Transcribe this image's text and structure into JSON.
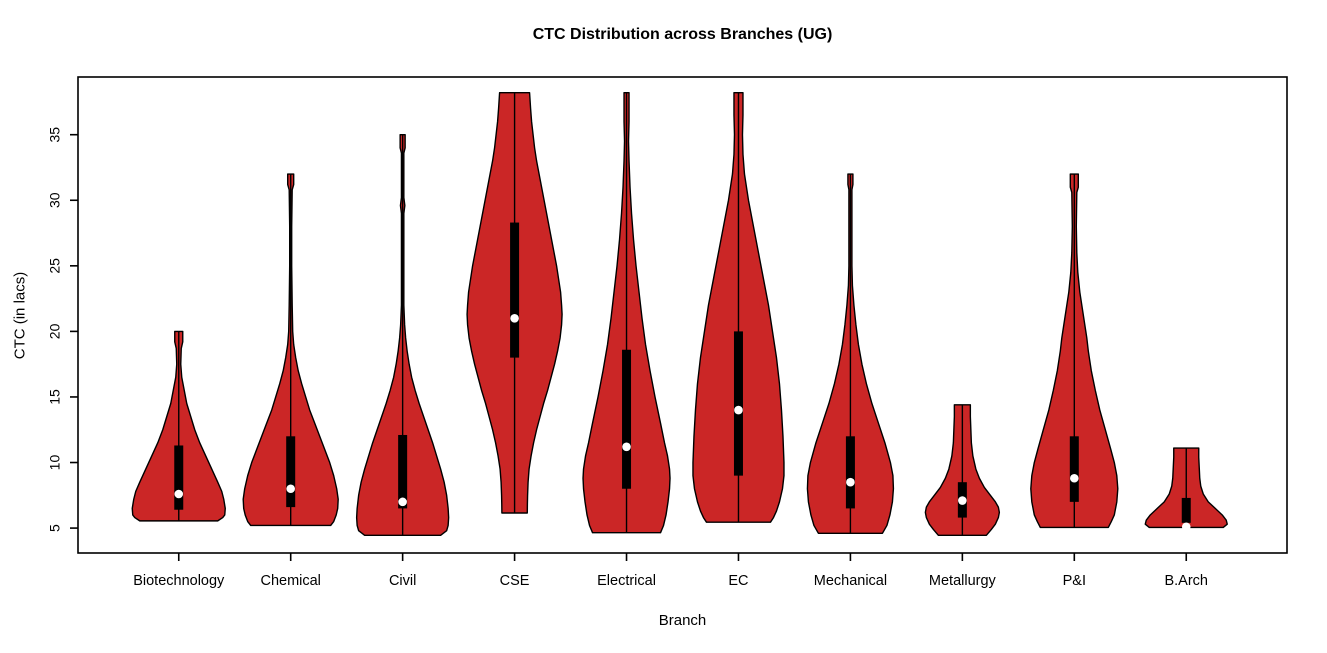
{
  "chart_data": {
    "type": "violin",
    "title": "CTC Distribution across Branches (UG)",
    "xlabel": "Branch",
    "ylabel": "CTC (in lacs)",
    "y_ticks": [
      5,
      10,
      15,
      20,
      25,
      30,
      35
    ],
    "ylim": [
      3.1,
      39.4
    ],
    "grid": false,
    "legend": "none",
    "categories": [
      "Biotechnology",
      "Chemical",
      "Civil",
      "CSE",
      "Electrical",
      "EC",
      "Mechanical",
      "Metallurgy",
      "P&I",
      "B.Arch"
    ],
    "colors": {
      "violin_fill": "#CB2626",
      "violin_border": "#000000",
      "box": "#000000",
      "whisker": "#000000",
      "median_dot": "#FFFFFF",
      "axis": "#000000"
    },
    "series": [
      {
        "name": "Biotechnology",
        "stats": {
          "min": 5.55,
          "q1": 6.4,
          "median": 7.6,
          "q3": 11.3,
          "max": 20
        },
        "profile": [
          [
            20.0,
            4
          ],
          [
            19.2,
            4
          ],
          [
            18.7,
            2.5
          ],
          [
            17.5,
            2
          ],
          [
            16.5,
            3
          ],
          [
            15.5,
            5.5
          ],
          [
            14.5,
            8
          ],
          [
            13.5,
            12
          ],
          [
            12.5,
            16
          ],
          [
            11.5,
            21
          ],
          [
            10.5,
            27
          ],
          [
            9.5,
            33
          ],
          [
            8.5,
            39
          ],
          [
            7.8,
            43
          ],
          [
            7.2,
            45
          ],
          [
            6.5,
            46.5
          ],
          [
            6.0,
            46
          ],
          [
            5.8,
            44
          ],
          [
            5.55,
            39
          ]
        ]
      },
      {
        "name": "Chemical",
        "stats": {
          "min": 5.2,
          "q1": 6.6,
          "median": 8.0,
          "q3": 12.0,
          "max": 32
        },
        "profile": [
          [
            32.0,
            3
          ],
          [
            31.2,
            3
          ],
          [
            30.8,
            1.5
          ],
          [
            28.0,
            1
          ],
          [
            25.0,
            1
          ],
          [
            22.0,
            1.5
          ],
          [
            20.0,
            2
          ],
          [
            19.0,
            3
          ],
          [
            18.0,
            5
          ],
          [
            17.0,
            7.5
          ],
          [
            16.0,
            11
          ],
          [
            15.0,
            15
          ],
          [
            14.0,
            19
          ],
          [
            13.0,
            24
          ],
          [
            12.0,
            29
          ],
          [
            11.0,
            34
          ],
          [
            10.0,
            39
          ],
          [
            9.0,
            43
          ],
          [
            8.0,
            46
          ],
          [
            7.2,
            47.5
          ],
          [
            6.5,
            47
          ],
          [
            6.0,
            45.5
          ],
          [
            5.5,
            43
          ],
          [
            5.2,
            40
          ]
        ]
      },
      {
        "name": "Civil",
        "stats": {
          "min": 4.45,
          "q1": 6.5,
          "median": 7.0,
          "q3": 12.1,
          "max": 35
        },
        "profile": [
          [
            35.0,
            2.5
          ],
          [
            34.0,
            2.5
          ],
          [
            33.6,
            1.2
          ],
          [
            30.2,
            1.2
          ],
          [
            29.6,
            2.2
          ],
          [
            29.0,
            1.2
          ],
          [
            22.0,
            1.2
          ],
          [
            20.5,
            2
          ],
          [
            19.5,
            3
          ],
          [
            18.5,
            4.5
          ],
          [
            17.5,
            6.5
          ],
          [
            16.5,
            9
          ],
          [
            15.5,
            12.5
          ],
          [
            14.5,
            16.5
          ],
          [
            13.5,
            21
          ],
          [
            12.5,
            25.5
          ],
          [
            11.5,
            30
          ],
          [
            10.5,
            34
          ],
          [
            9.5,
            38
          ],
          [
            8.5,
            41.5
          ],
          [
            7.5,
            44
          ],
          [
            6.5,
            45.5
          ],
          [
            5.8,
            46
          ],
          [
            5.2,
            45.5
          ],
          [
            4.8,
            44
          ],
          [
            4.45,
            38
          ]
        ]
      },
      {
        "name": "CSE",
        "stats": {
          "min": 6.15,
          "q1": 18.0,
          "median": 21.0,
          "q3": 28.3,
          "max": 38.2
        },
        "profile": [
          [
            38.2,
            15
          ],
          [
            37,
            16
          ],
          [
            36,
            17
          ],
          [
            35,
            18.5
          ],
          [
            34,
            20
          ],
          [
            33,
            22
          ],
          [
            32,
            24.5
          ],
          [
            31,
            27
          ],
          [
            30,
            29.5
          ],
          [
            29,
            32
          ],
          [
            28,
            34.5
          ],
          [
            27,
            37
          ],
          [
            26,
            39.5
          ],
          [
            25,
            42
          ],
          [
            24,
            44
          ],
          [
            23,
            46
          ],
          [
            22,
            47
          ],
          [
            21.3,
            47.5
          ],
          [
            20.5,
            47
          ],
          [
            19.5,
            45.5
          ],
          [
            18.5,
            43
          ],
          [
            17.5,
            40
          ],
          [
            16.5,
            36.5
          ],
          [
            15.5,
            33
          ],
          [
            14.5,
            29
          ],
          [
            13.5,
            25.5
          ],
          [
            12.5,
            22
          ],
          [
            11.5,
            19
          ],
          [
            10.5,
            16.5
          ],
          [
            9.5,
            14.5
          ],
          [
            8.5,
            13.5
          ],
          [
            7.5,
            13
          ],
          [
            6.8,
            12.8
          ],
          [
            6.15,
            12.7
          ]
        ]
      },
      {
        "name": "Electrical",
        "stats": {
          "min": 4.65,
          "q1": 8.0,
          "median": 11.2,
          "q3": 18.6,
          "max": 38.2
        },
        "profile": [
          [
            38.2,
            2.5
          ],
          [
            36,
            2.5
          ],
          [
            34.5,
            2
          ],
          [
            33,
            2.5
          ],
          [
            31,
            3.5
          ],
          [
            29,
            5
          ],
          [
            27,
            7
          ],
          [
            25,
            9.5
          ],
          [
            23,
            12.5
          ],
          [
            21,
            15.5
          ],
          [
            19,
            19
          ],
          [
            17,
            23.5
          ],
          [
            15,
            28.5
          ],
          [
            13,
            34
          ],
          [
            11.5,
            38
          ],
          [
            10.5,
            41
          ],
          [
            9.5,
            43
          ],
          [
            8.8,
            43.5
          ],
          [
            8.0,
            43
          ],
          [
            7.0,
            41.5
          ],
          [
            6.0,
            39.5
          ],
          [
            5.2,
            37
          ],
          [
            4.65,
            34
          ]
        ]
      },
      {
        "name": "EC",
        "stats": {
          "min": 5.45,
          "q1": 9.0,
          "median": 14.0,
          "q3": 20.0,
          "max": 38.2
        },
        "profile": [
          [
            38.2,
            4.5
          ],
          [
            36.5,
            4.5
          ],
          [
            35,
            4
          ],
          [
            33.5,
            4.5
          ],
          [
            32,
            6
          ],
          [
            30,
            10
          ],
          [
            28,
            15
          ],
          [
            26,
            20
          ],
          [
            24,
            25
          ],
          [
            22,
            30
          ],
          [
            20,
            34
          ],
          [
            18,
            38
          ],
          [
            16,
            41
          ],
          [
            14,
            43
          ],
          [
            12,
            44.5
          ],
          [
            10,
            45.5
          ],
          [
            9,
            45.5
          ],
          [
            8,
            44
          ],
          [
            7,
            41
          ],
          [
            6.3,
            38
          ],
          [
            5.8,
            35
          ],
          [
            5.45,
            32
          ]
        ]
      },
      {
        "name": "Mechanical",
        "stats": {
          "min": 4.6,
          "q1": 6.5,
          "median": 8.5,
          "q3": 12.0,
          "max": 32
        },
        "profile": [
          [
            32.0,
            2.5
          ],
          [
            31.2,
            2.5
          ],
          [
            30.8,
            1.5
          ],
          [
            28,
            1.5
          ],
          [
            25,
            1.5
          ],
          [
            23.5,
            2
          ],
          [
            22,
            3.5
          ],
          [
            20.5,
            5.5
          ],
          [
            19,
            8
          ],
          [
            17.5,
            11.5
          ],
          [
            16,
            16
          ],
          [
            14.5,
            21.5
          ],
          [
            13,
            28
          ],
          [
            11.5,
            34.5
          ],
          [
            10,
            40
          ],
          [
            9,
            42.5
          ],
          [
            8,
            43
          ],
          [
            7,
            42
          ],
          [
            6,
            39.5
          ],
          [
            5.2,
            36.5
          ],
          [
            4.6,
            32
          ]
        ]
      },
      {
        "name": "Metallurgy",
        "stats": {
          "min": 4.45,
          "q1": 5.8,
          "median": 7.1,
          "q3": 8.5,
          "max": 14.4
        },
        "profile": [
          [
            14.4,
            8
          ],
          [
            13.5,
            8
          ],
          [
            12.5,
            8.5
          ],
          [
            11.5,
            9
          ],
          [
            10.5,
            10.5
          ],
          [
            9.5,
            13.5
          ],
          [
            8.8,
            17
          ],
          [
            8.1,
            22
          ],
          [
            7.5,
            28
          ],
          [
            7.0,
            33
          ],
          [
            6.6,
            36
          ],
          [
            6.2,
            37
          ],
          [
            5.8,
            36
          ],
          [
            5.3,
            33
          ],
          [
            4.9,
            29
          ],
          [
            4.45,
            24
          ]
        ]
      },
      {
        "name": "P&I",
        "stats": {
          "min": 5.05,
          "q1": 7.0,
          "median": 8.8,
          "q3": 12.0,
          "max": 32
        },
        "profile": [
          [
            32.0,
            4
          ],
          [
            31.0,
            4
          ],
          [
            30.6,
            2.5
          ],
          [
            28,
            2
          ],
          [
            26,
            2.5
          ],
          [
            24.5,
            3.5
          ],
          [
            23,
            5.5
          ],
          [
            21.5,
            8.5
          ],
          [
            20,
            11.5
          ],
          [
            19.5,
            12.5
          ],
          [
            18.5,
            14
          ],
          [
            17,
            17
          ],
          [
            15.5,
            21
          ],
          [
            14,
            25.5
          ],
          [
            12.5,
            31
          ],
          [
            11,
            36.5
          ],
          [
            10,
            40
          ],
          [
            9,
            42.5
          ],
          [
            8,
            43.5
          ],
          [
            7,
            42.5
          ],
          [
            6,
            40
          ],
          [
            5.5,
            37
          ],
          [
            5.05,
            34
          ]
        ]
      },
      {
        "name": "B.Arch",
        "stats": {
          "min": 5.05,
          "q1": 5.4,
          "median": 5.1,
          "q3": 7.3,
          "max": 11.1
        },
        "profile": [
          [
            11.1,
            12.5
          ],
          [
            10.4,
            12.5
          ],
          [
            9.6,
            13
          ],
          [
            8.8,
            13.5
          ],
          [
            8.2,
            14.5
          ],
          [
            7.6,
            17
          ],
          [
            7.0,
            22
          ],
          [
            6.5,
            29
          ],
          [
            6.0,
            36
          ],
          [
            5.6,
            40
          ],
          [
            5.3,
            41
          ],
          [
            5.05,
            37
          ]
        ]
      }
    ]
  }
}
